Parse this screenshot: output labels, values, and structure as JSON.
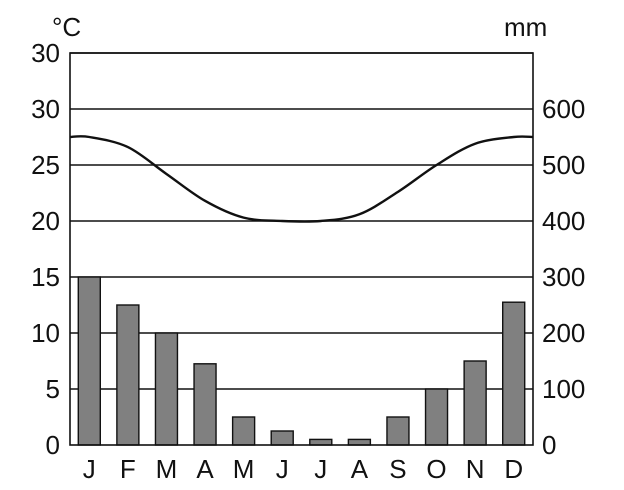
{
  "chart_data": {
    "type": "bar",
    "left_unit": "°C",
    "right_unit": "mm",
    "categories": [
      "J",
      "F",
      "M",
      "A",
      "M",
      "J",
      "J",
      "A",
      "S",
      "O",
      "N",
      "D"
    ],
    "left_ticks": [
      "0",
      "5",
      "10",
      "15",
      "20",
      "25",
      "30",
      "30"
    ],
    "right_ticks": [
      "0",
      "100",
      "200",
      "300",
      "400",
      "500",
      "600"
    ],
    "series": [
      {
        "type": "bar",
        "axis": "right",
        "values": [
          300,
          250,
          200,
          145,
          50,
          25,
          10,
          10,
          50,
          100,
          150,
          255
        ]
      },
      {
        "type": "line",
        "axis": "left",
        "values": [
          27.5,
          26.6,
          24.2,
          21.8,
          20.3,
          20.0,
          20.0,
          20.6,
          22.6,
          25.0,
          26.9,
          27.5
        ]
      }
    ],
    "left_range": [
      0,
      35
    ],
    "right_range": [
      0,
      700
    ],
    "bar_color": "#808080",
    "line_color": "#111111",
    "grid": true
  }
}
